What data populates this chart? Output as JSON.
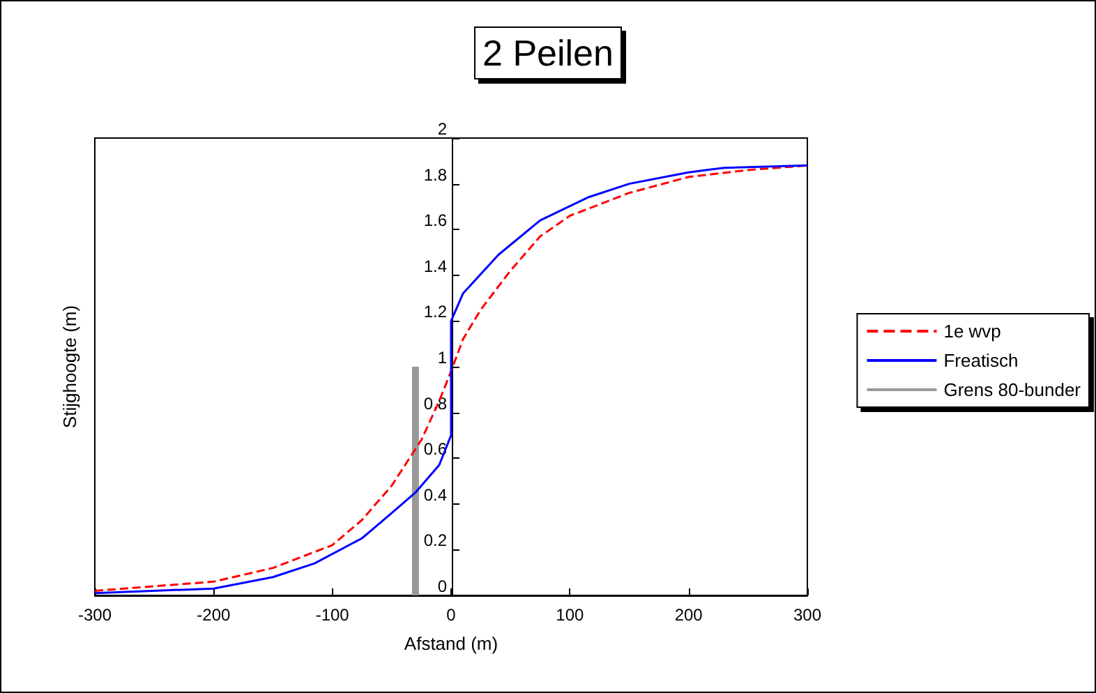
{
  "chart_data": {
    "type": "line",
    "title": "2 Peilen",
    "xlabel": "Afstand (m)",
    "ylabel": "Stijghoogte (m)",
    "xlim": [
      -300,
      300
    ],
    "xticks": [
      -300,
      -200,
      -100,
      0,
      100,
      200,
      300
    ],
    "ylim": [
      0,
      2
    ],
    "yticks": [
      0,
      0.2,
      0.4,
      0.6,
      0.8,
      1,
      1.2,
      1.4,
      1.6,
      1.8,
      2
    ],
    "grid": false,
    "legend": "right",
    "marker": "none",
    "series": [
      {
        "name": "1e wvp",
        "color": "#ff0000",
        "line_style": "dashed",
        "x": [
          -300,
          -250,
          -200,
          -150,
          -100,
          -75,
          -50,
          -25,
          -10,
          0,
          10,
          25,
          50,
          75,
          100,
          150,
          200,
          250,
          300
        ],
        "values": [
          0.02,
          0.04,
          0.06,
          0.12,
          0.22,
          0.33,
          0.48,
          0.68,
          0.85,
          0.98,
          1.12,
          1.25,
          1.42,
          1.57,
          1.66,
          1.76,
          1.83,
          1.86,
          1.88
        ]
      },
      {
        "name": "Freatisch",
        "color": "#0000ff",
        "line_style": "solid",
        "x": [
          -300,
          -200,
          -150,
          -115,
          -75,
          -50,
          -30,
          -10,
          0,
          0,
          10,
          40,
          75,
          115,
          150,
          200,
          230,
          300
        ],
        "values": [
          0.01,
          0.03,
          0.08,
          0.14,
          0.25,
          0.36,
          0.45,
          0.57,
          0.7,
          1.2,
          1.32,
          1.49,
          1.64,
          1.74,
          1.8,
          1.85,
          1.87,
          1.88
        ]
      },
      {
        "name": "Grens 80-bunder",
        "color": "#999999",
        "line_style": "solid",
        "x": [
          -30,
          -30
        ],
        "values": [
          0,
          1
        ]
      }
    ]
  }
}
